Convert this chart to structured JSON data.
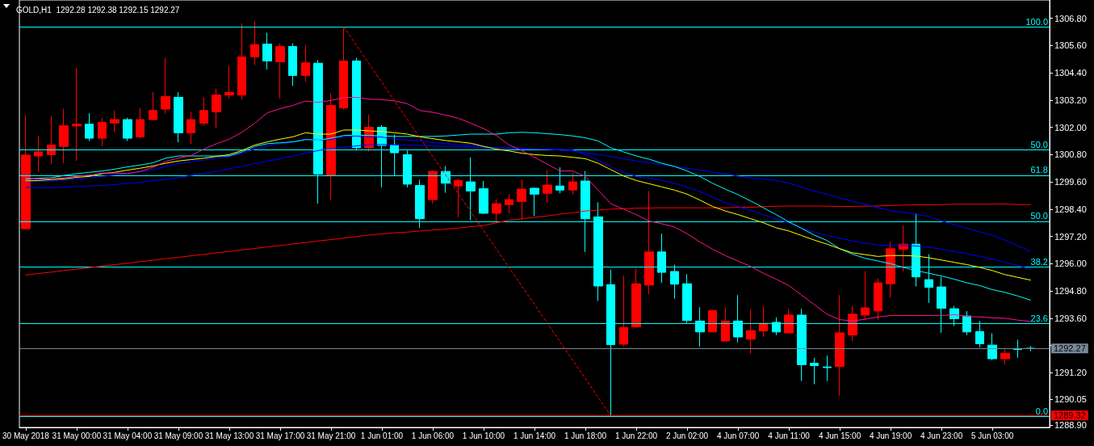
{
  "chart_data": {
    "type": "candlestick",
    "title": "GOLD,H1  1292.28 1292.38 1292.15 1292.27",
    "categories": [
      "30 May 2018",
      null,
      null,
      null,
      "31 May 00:00",
      null,
      null,
      null,
      "31 May 04:00",
      null,
      null,
      null,
      "31 May 09:00",
      null,
      null,
      null,
      "31 May 13:00",
      null,
      null,
      null,
      "31 May 17:00",
      null,
      null,
      null,
      "31 May 21:00",
      null,
      null,
      null,
      "1 Jun 01:00",
      null,
      null,
      null,
      "1 Jun 06:00",
      null,
      null,
      null,
      "1 Jun 10:00",
      null,
      null,
      null,
      "1 Jun 14:00",
      null,
      null,
      null,
      "1 Jun 18:00",
      null,
      null,
      null,
      "1 Jun 22:00",
      null,
      null,
      null,
      "2 Jun 02:00",
      null,
      null,
      null,
      "4 Jun 07:00",
      null,
      null,
      null,
      "4 Jun 11:00",
      null,
      null,
      null,
      "4 Jun 15:00",
      null,
      null,
      null,
      "4 Jun 19:00",
      null,
      null,
      null,
      "4 Jun 23:00",
      null,
      null,
      null,
      "5 Jun 03:00",
      null,
      null,
      null
    ],
    "ohlc": [
      [
        1297.54,
        1302.54,
        1297.5,
        1300.78
      ],
      [
        1300.74,
        1301.62,
        1300.06,
        1300.92
      ],
      [
        1300.8,
        1302.5,
        1300.38,
        1301.22
      ],
      [
        1301.16,
        1302.82,
        1300.42,
        1302.07
      ],
      [
        1302.06,
        1304.6,
        1300.52,
        1302.14
      ],
      [
        1302.14,
        1302.62,
        1301.4,
        1301.52
      ],
      [
        1301.52,
        1302.42,
        1301.16,
        1302.22
      ],
      [
        1302.19,
        1302.74,
        1301.8,
        1302.34
      ],
      [
        1302.34,
        1302.42,
        1301.4,
        1301.52
      ],
      [
        1301.58,
        1302.86,
        1301.52,
        1302.34
      ],
      [
        1302.34,
        1303.54,
        1302.3,
        1302.74
      ],
      [
        1302.8,
        1305.06,
        1302.6,
        1303.36
      ],
      [
        1303.32,
        1303.54,
        1301.34,
        1301.76
      ],
      [
        1301.76,
        1302.68,
        1301.26,
        1302.34
      ],
      [
        1302.18,
        1303.3,
        1302.06,
        1302.74
      ],
      [
        1302.68,
        1303.7,
        1301.98,
        1303.42
      ],
      [
        1303.42,
        1304.7,
        1303.26,
        1303.54
      ],
      [
        1303.42,
        1306.58,
        1303.22,
        1305.1
      ],
      [
        1305.1,
        1306.66,
        1304.74,
        1305.64
      ],
      [
        1305.66,
        1306.16,
        1304.54,
        1304.92
      ],
      [
        1304.88,
        1305.7,
        1303.26,
        1305.56
      ],
      [
        1305.56,
        1305.7,
        1303.82,
        1304.28
      ],
      [
        1304.28,
        1305.6,
        1304.0,
        1304.84
      ],
      [
        1304.82,
        1304.96,
        1298.64,
        1299.94
      ],
      [
        1299.9,
        1303.5,
        1298.78,
        1302.96
      ],
      [
        1302.86,
        1306.42,
        1302.78,
        1304.92
      ],
      [
        1304.92,
        1305.06,
        1300.98,
        1301.1
      ],
      [
        1301.1,
        1302.56,
        1300.94,
        1302.0
      ],
      [
        1302.0,
        1302.1,
        1299.36,
        1301.2
      ],
      [
        1301.22,
        1301.68,
        1299.88,
        1300.88
      ],
      [
        1300.8,
        1300.98,
        1299.36,
        1299.5
      ],
      [
        1299.44,
        1299.7,
        1297.58,
        1297.98
      ],
      [
        1298.82,
        1300.12,
        1298.64,
        1300.06
      ],
      [
        1300.06,
        1300.3,
        1299.12,
        1299.54
      ],
      [
        1299.42,
        1299.72,
        1298.04,
        1299.66
      ],
      [
        1299.6,
        1300.68,
        1297.92,
        1299.2
      ],
      [
        1299.3,
        1299.64,
        1298.18,
        1298.22
      ],
      [
        1298.22,
        1298.84,
        1297.86,
        1298.64
      ],
      [
        1298.6,
        1299.06,
        1298.22,
        1298.82
      ],
      [
        1298.74,
        1299.7,
        1297.94,
        1299.28
      ],
      [
        1299.32,
        1299.36,
        1298.1,
        1299.06
      ],
      [
        1299.1,
        1300.12,
        1298.68,
        1299.46
      ],
      [
        1299.42,
        1300.24,
        1299.1,
        1299.24
      ],
      [
        1299.24,
        1300.0,
        1299.06,
        1299.6
      ],
      [
        1299.64,
        1300.08,
        1296.52,
        1297.98
      ],
      [
        1298.06,
        1298.7,
        1294.36,
        1295.02
      ],
      [
        1295.08,
        1295.74,
        1289.32,
        1292.44
      ],
      [
        1292.46,
        1295.48,
        1292.36,
        1293.2
      ],
      [
        1293.22,
        1295.78,
        1293.18,
        1295.12
      ],
      [
        1295.06,
        1299.2,
        1294.66,
        1296.52
      ],
      [
        1296.52,
        1297.32,
        1295.16,
        1295.62
      ],
      [
        1295.66,
        1295.96,
        1294.46,
        1295.1
      ],
      [
        1295.12,
        1295.54,
        1293.4,
        1293.5
      ],
      [
        1293.48,
        1294.08,
        1292.36,
        1293.0
      ],
      [
        1293.0,
        1293.98,
        1293.0,
        1293.94
      ],
      [
        1292.6,
        1294.08,
        1292.58,
        1293.48
      ],
      [
        1293.48,
        1294.62,
        1292.54,
        1292.78
      ],
      [
        1292.68,
        1293.98,
        1292.04,
        1293.06
      ],
      [
        1293.04,
        1294.14,
        1292.78,
        1293.38
      ],
      [
        1293.42,
        1293.64,
        1292.86,
        1293.0
      ],
      [
        1292.96,
        1294.02,
        1292.96,
        1293.74
      ],
      [
        1293.74,
        1294.02,
        1290.84,
        1291.56
      ],
      [
        1291.62,
        1291.86,
        1290.7,
        1291.52
      ],
      [
        1291.46,
        1291.96,
        1290.84,
        1291.43
      ],
      [
        1291.48,
        1294.62,
        1290.2,
        1292.96
      ],
      [
        1292.86,
        1294.14,
        1292.6,
        1293.78
      ],
      [
        1293.74,
        1295.66,
        1293.54,
        1294.06
      ],
      [
        1293.92,
        1295.36,
        1293.54,
        1295.16
      ],
      [
        1295.12,
        1296.96,
        1294.5,
        1296.66
      ],
      [
        1296.64,
        1297.68,
        1295.66,
        1296.86
      ],
      [
        1296.86,
        1298.2,
        1295.0,
        1295.42
      ],
      [
        1295.3,
        1296.42,
        1294.28,
        1294.96
      ],
      [
        1294.98,
        1295.42,
        1292.96,
        1294.04
      ],
      [
        1294.02,
        1294.14,
        1293.26,
        1293.58
      ],
      [
        1293.7,
        1293.92,
        1292.86,
        1293.0
      ],
      [
        1293.02,
        1293.48,
        1292.32,
        1292.48
      ],
      [
        1292.42,
        1292.94,
        1291.76,
        1291.82
      ],
      [
        1291.82,
        1292.22,
        1291.56,
        1292.06
      ],
      [
        1292.26,
        1292.66,
        1291.86,
        1292.23
      ],
      [
        1292.28,
        1292.38,
        1292.15,
        1292.27
      ]
    ],
    "colors": [
      "#ff0000",
      "#ff0000",
      "#ff0000",
      "#ff0000",
      "#ff0000",
      "#00ffff",
      "#ff0000",
      "#ff0000",
      "#00ffff",
      "#ff0000",
      "#ff0000",
      "#ff0000",
      "#00ffff",
      "#ff0000",
      "#ff0000",
      "#ff0000",
      "#ff0000",
      "#ff0000",
      "#ff0000",
      "#00ffff",
      "#ff0000",
      "#00ffff",
      "#ff0000",
      "#00ffff",
      "#ff0000",
      "#ff0000",
      "#00ffff",
      "#ff0000",
      "#00ffff",
      "#00ffff",
      "#00ffff",
      "#00ffff",
      "#ff0000",
      "#00ffff",
      "#ff0000",
      "#00ffff",
      "#00ffff",
      "#ff0000",
      "#ff0000",
      "#ff0000",
      "#00ffff",
      "#ff0000",
      "#00ffff",
      "#ff0000",
      "#00ffff",
      "#00ffff",
      "#00ffff",
      "#ff0000",
      "#ff0000",
      "#ff0000",
      "#00ffff",
      "#00ffff",
      "#00ffff",
      "#00ffff",
      "#ff0000",
      "#ff0000",
      "#00ffff",
      "#ff0000",
      "#ff0000",
      "#00ffff",
      "#ff0000",
      "#00ffff",
      "#00ffff",
      "#00ffff",
      "#ff0000",
      "#ff0000",
      "#ff0000",
      "#ff0000",
      "#ff0000",
      "#ff0000",
      "#00ffff",
      "#00ffff",
      "#00ffff",
      "#00ffff",
      "#00ffff",
      "#00ffff",
      "#00ffff",
      "#ff0000",
      "#00ffff",
      "#00ffff"
    ],
    "series": [
      {
        "type": "line",
        "color": "#ff0000",
        "values": [
          1295.5,
          1295.57,
          1295.63,
          1295.7,
          1295.76,
          1295.83,
          1295.89,
          1295.96,
          1296.02,
          1296.09,
          1296.15,
          1296.22,
          1296.28,
          1296.35,
          1296.41,
          1296.48,
          1296.54,
          1296.61,
          1296.67,
          1296.74,
          1296.8,
          1296.87,
          1296.93,
          1297.0,
          1297.06,
          1297.13,
          1297.19,
          1297.26,
          1297.31,
          1297.36,
          1297.39,
          1297.44,
          1297.48,
          1297.52,
          1297.57,
          1297.63,
          1297.68,
          1297.8,
          1297.91,
          1297.98,
          1298.04,
          1298.1,
          1298.18,
          1298.24,
          1298.32,
          1298.36,
          1298.4,
          1298.42,
          1298.44,
          1298.45,
          1298.46,
          1298.46,
          1298.46,
          1298.46,
          1298.46,
          1298.46,
          1298.48,
          1298.48,
          1298.51,
          1298.53,
          1298.54,
          1298.54,
          1298.54,
          1298.53,
          1298.52,
          1298.52,
          1298.53,
          1298.54,
          1298.56,
          1298.58,
          1298.59,
          1298.59,
          1298.6,
          1298.62,
          1298.62,
          1298.62,
          1298.62,
          1298.63,
          1298.6,
          1298.6
        ]
      },
      {
        "type": "line",
        "color": "#0000ff",
        "values": [
          1299.36,
          1299.35,
          1299.34,
          1299.37,
          1299.4,
          1299.42,
          1299.44,
          1299.48,
          1299.53,
          1299.58,
          1299.65,
          1299.71,
          1299.79,
          1299.88,
          1299.98,
          1300.06,
          1300.18,
          1300.28,
          1300.4,
          1300.51,
          1300.62,
          1300.74,
          1300.86,
          1300.98,
          1301.06,
          1301.12,
          1301.18,
          1301.24,
          1301.24,
          1301.23,
          1301.22,
          1301.21,
          1301.18,
          1301.17,
          1301.16,
          1301.14,
          1301.1,
          1301.1,
          1301.1,
          1301.08,
          1301.04,
          1301.03,
          1301.0,
          1300.96,
          1300.88,
          1300.8,
          1300.72,
          1300.62,
          1300.52,
          1300.44,
          1300.37,
          1300.28,
          1300.2,
          1300.12,
          1300.03,
          1299.95,
          1299.85,
          1299.78,
          1299.72,
          1299.66,
          1299.54,
          1299.36,
          1299.2,
          1299.05,
          1298.89,
          1298.75,
          1298.6,
          1298.46,
          1298.34,
          1298.26,
          1298.18,
          1298.08,
          1297.88,
          1297.72,
          1297.56,
          1297.4,
          1297.26,
          1297.04,
          1296.8,
          1296.54
        ]
      },
      {
        "type": "line",
        "color": "#0000ff",
        "values": [
          1299.6,
          1299.61,
          1299.64,
          1299.68,
          1299.72,
          1299.78,
          1299.84,
          1299.9,
          1299.96,
          1300.04,
          1300.14,
          1300.28,
          1300.4,
          1300.48,
          1300.56,
          1300.64,
          1300.72,
          1300.86,
          1301.04,
          1301.18,
          1301.28,
          1301.34,
          1301.48,
          1301.44,
          1301.46,
          1301.6,
          1301.62,
          1301.58,
          1301.57,
          1301.48,
          1301.44,
          1301.4,
          1301.34,
          1301.28,
          1301.24,
          1301.22,
          1301.16,
          1301.1,
          1301.08,
          1301.04,
          1301.04,
          1301.04,
          1301.03,
          1301.0,
          1300.8,
          1300.56,
          1300.26,
          1300.02,
          1299.84,
          1299.76,
          1299.66,
          1299.54,
          1299.36,
          1299.18,
          1298.94,
          1298.68,
          1298.52,
          1298.34,
          1298.16,
          1297.98,
          1297.8,
          1297.56,
          1297.4,
          1297.24,
          1297.12,
          1297.0,
          1296.9,
          1296.82,
          1296.8,
          1296.8,
          1296.78,
          1296.72,
          1296.64,
          1296.54,
          1296.44,
          1296.32,
          1296.2,
          1296.06,
          1295.92,
          1295.76
        ]
      },
      {
        "type": "line",
        "color": "#00ffff",
        "values": [
          1299.72,
          1299.76,
          1299.78,
          1299.88,
          1299.96,
          1300.02,
          1300.08,
          1300.16,
          1300.26,
          1300.34,
          1300.44,
          1300.64,
          1300.74,
          1300.74,
          1300.74,
          1300.74,
          1300.74,
          1300.92,
          1301.16,
          1301.28,
          1301.32,
          1301.36,
          1301.46,
          1301.44,
          1301.52,
          1301.64,
          1301.66,
          1301.64,
          1301.63,
          1301.6,
          1301.6,
          1301.6,
          1301.6,
          1301.62,
          1301.66,
          1301.7,
          1301.7,
          1301.7,
          1301.76,
          1301.78,
          1301.76,
          1301.72,
          1301.68,
          1301.62,
          1301.54,
          1301.4,
          1301.1,
          1300.92,
          1300.74,
          1300.6,
          1300.42,
          1300.28,
          1300.08,
          1299.84,
          1299.54,
          1299.28,
          1299.04,
          1298.76,
          1298.46,
          1298.16,
          1297.84,
          1297.56,
          1297.26,
          1297.02,
          1296.66,
          1296.42,
          1296.24,
          1296.12,
          1296.0,
          1295.84,
          1295.7,
          1295.58,
          1295.46,
          1295.32,
          1295.16,
          1295.04,
          1294.86,
          1294.74,
          1294.58,
          1294.4
        ]
      },
      {
        "type": "line",
        "color": "#ffff00",
        "values": [
          1299.64,
          1299.66,
          1299.7,
          1299.73,
          1299.8,
          1299.84,
          1299.96,
          1300.02,
          1300.12,
          1300.2,
          1300.3,
          1300.42,
          1300.52,
          1300.58,
          1300.64,
          1300.72,
          1300.8,
          1300.98,
          1301.22,
          1301.36,
          1301.48,
          1301.58,
          1301.76,
          1301.7,
          1301.7,
          1301.88,
          1301.88,
          1301.84,
          1301.82,
          1301.76,
          1301.7,
          1301.58,
          1301.5,
          1301.42,
          1301.36,
          1301.3,
          1301.16,
          1301.04,
          1300.96,
          1300.86,
          1300.8,
          1300.76,
          1300.74,
          1300.68,
          1300.62,
          1300.42,
          1300.14,
          1299.86,
          1299.66,
          1299.52,
          1299.38,
          1299.24,
          1299.06,
          1298.8,
          1298.52,
          1298.32,
          1298.16,
          1297.98,
          1297.8,
          1297.58,
          1297.44,
          1297.24,
          1297.04,
          1296.86,
          1296.66,
          1296.48,
          1296.4,
          1296.32,
          1296.36,
          1296.36,
          1296.34,
          1296.26,
          1296.16,
          1296.06,
          1295.96,
          1295.84,
          1295.7,
          1295.52,
          1295.4,
          1295.28
        ]
      },
      {
        "type": "line",
        "color": "#ff1493",
        "values": [
          1299.78,
          1299.72,
          1299.74,
          1299.78,
          1299.84,
          1299.9,
          1299.99,
          1299.99,
          1299.96,
          1300.06,
          1300.24,
          1300.5,
          1300.64,
          1300.76,
          1301.04,
          1301.28,
          1301.48,
          1301.78,
          1302.18,
          1302.64,
          1302.82,
          1302.96,
          1303.16,
          1303.1,
          1303.18,
          1303.31,
          1303.32,
          1303.24,
          1303.22,
          1303.16,
          1303.04,
          1302.74,
          1302.66,
          1302.54,
          1302.4,
          1302.18,
          1301.94,
          1301.64,
          1301.22,
          1300.98,
          1300.68,
          1300.38,
          1300.08,
          1300.08,
          1299.84,
          1299.24,
          1298.64,
          1298.4,
          1298.16,
          1297.88,
          1297.76,
          1297.62,
          1297.32,
          1296.96,
          1296.64,
          1296.36,
          1296.12,
          1295.88,
          1295.58,
          1295.32,
          1295.04,
          1294.62,
          1294.2,
          1293.78,
          1293.54,
          1293.48,
          1293.56,
          1293.66,
          1293.72,
          1293.72,
          1293.72,
          1293.72,
          1293.72,
          1293.76,
          1293.68,
          1293.66,
          1293.62,
          1293.6,
          1293.52,
          1293.46
        ]
      },
      {
        "type": "line",
        "color": "#ff0000",
        "line_style": "dashed",
        "values": [
          null,
          null,
          null,
          null,
          null,
          null,
          null,
          null,
          null,
          null,
          null,
          null,
          null,
          null,
          null,
          null,
          null,
          null,
          null,
          null,
          null,
          null,
          null,
          null,
          null,
          1306.42,
          1305.61,
          1304.79,
          1303.98,
          1303.16,
          1302.35,
          1301.53,
          1300.72,
          1299.91,
          1299.09,
          1298.28,
          1297.46,
          1296.65,
          1295.83,
          1295.02,
          1294.21,
          1293.39,
          1292.58,
          1291.76,
          1290.95,
          1290.13,
          1289.32,
          null,
          null,
          null,
          null,
          null,
          null,
          null,
          null,
          null,
          null,
          null,
          null,
          null,
          null,
          null,
          null,
          null,
          null,
          null,
          null,
          null,
          null,
          null,
          null,
          null,
          null,
          null,
          null,
          null,
          null,
          null,
          null,
          null
        ]
      }
    ],
    "ylim": [
      1288.8,
      1307.6
    ],
    "yticks": [
      {
        "value": 1288.9,
        "label": "1288.90"
      },
      {
        "value": 1290.05,
        "label": "1290.05"
      },
      {
        "value": 1291.2,
        "label": "1291.20"
      },
      {
        "value": 1292.4,
        "label": null
      },
      {
        "value": 1293.6,
        "label": "1293.60"
      },
      {
        "value": 1294.8,
        "label": "1294.80"
      },
      {
        "value": 1296,
        "label": "1296.00"
      },
      {
        "value": 1297.2,
        "label": "1297.20"
      },
      {
        "value": 1298.4,
        "label": "1298.40"
      },
      {
        "value": 1299.6,
        "label": "1299.60"
      },
      {
        "value": 1300.8,
        "label": "1300.80"
      },
      {
        "value": 1302,
        "label": "1302.00"
      },
      {
        "value": 1303.2,
        "label": "1303.20"
      },
      {
        "value": 1304.4,
        "label": "1304.40"
      },
      {
        "value": 1305.6,
        "label": "1305.60"
      },
      {
        "value": 1306.8,
        "label": "1306.80"
      }
    ],
    "ref_lines": [
      {
        "axis": "y",
        "value": 1306.42,
        "color": "#00ffff"
      },
      {
        "axis": "y",
        "value": 1301.01,
        "color": "#00ffff"
      },
      {
        "axis": "y",
        "value": 1299.89,
        "color": "#00ffff"
      },
      {
        "axis": "y",
        "value": 1297.87,
        "color": "#00ffff"
      },
      {
        "axis": "y",
        "value": 1295.85,
        "color": "#00ffff"
      },
      {
        "axis": "y",
        "value": 1293.36,
        "color": "#00ffff"
      },
      {
        "axis": "y",
        "value": 1289.28,
        "color": "#00ffff"
      },
      {
        "axis": "y",
        "value": 1292.27,
        "label": "1292.27",
        "color": "#778899"
      },
      {
        "axis": "y",
        "value": 1289.32,
        "label": "1289.32",
        "color": "#ff0000"
      }
    ],
    "annotations": [
      {
        "text": "100.0",
        "y": 1306.42
      },
      {
        "text": "50.0",
        "y": 1301.01
      },
      {
        "text": "61.8",
        "y": 1299.89
      },
      {
        "text": "50.0",
        "y": 1297.87
      },
      {
        "text": "38.2",
        "y": 1295.85
      },
      {
        "text": "23.6",
        "y": 1293.36
      },
      {
        "text": "0.0",
        "y": 1289.28
      }
    ],
    "marker": "none",
    "grid": false
  }
}
